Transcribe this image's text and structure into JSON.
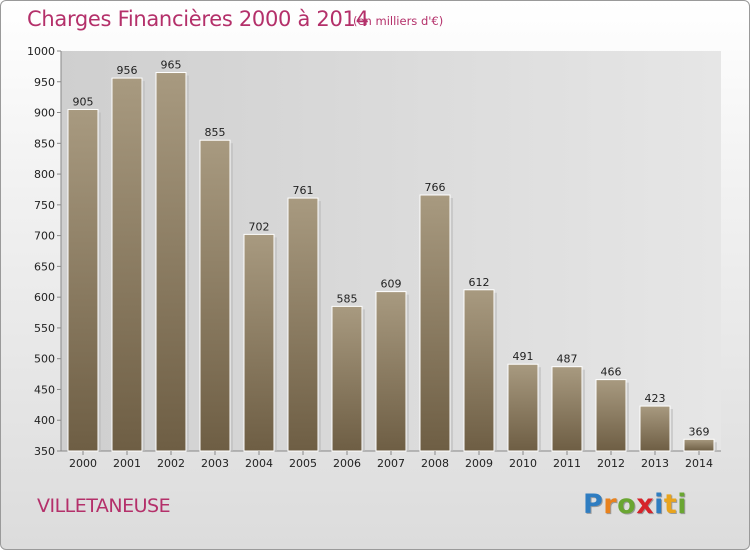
{
  "header": {
    "title": "Charges Financières 2000 à 2014",
    "subtitle": "(en milliers d'€)"
  },
  "footer": {
    "place": "VILLETANEUSE",
    "logo_letters": [
      "P",
      "r",
      "o",
      "x",
      "i",
      "t",
      "i"
    ]
  },
  "colors": {
    "title": "#b4306a",
    "bar_top": "#a89a80",
    "bar_bottom": "#6e5e44",
    "logo": [
      "#2f7dc1",
      "#e8821e",
      "#6aa632",
      "#d6232a",
      "#2f7dc1",
      "#e8a41e",
      "#6aa632"
    ]
  },
  "chart_data": {
    "type": "bar",
    "title": "Charges Financières 2000 à 2014",
    "subtitle": "(en milliers d'€)",
    "xlabel": "",
    "ylabel": "",
    "categories": [
      "2000",
      "2001",
      "2002",
      "2003",
      "2004",
      "2005",
      "2006",
      "2007",
      "2008",
      "2009",
      "2010",
      "2011",
      "2012",
      "2013",
      "2014"
    ],
    "values": [
      905,
      956,
      965,
      855,
      702,
      761,
      585,
      609,
      766,
      612,
      491,
      487,
      466,
      423,
      369
    ],
    "ylim": [
      350,
      1000
    ],
    "yticks": [
      350,
      400,
      450,
      500,
      550,
      600,
      650,
      700,
      750,
      800,
      850,
      900,
      950,
      1000
    ],
    "grid": false,
    "legend": "none"
  }
}
